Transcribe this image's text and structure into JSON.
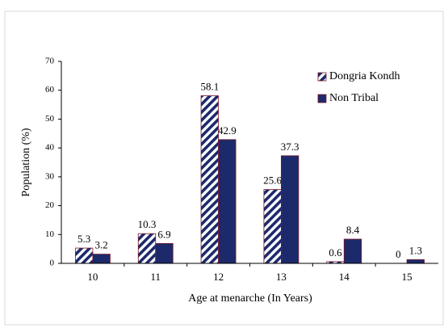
{
  "chart_data": {
    "type": "bar",
    "categories": [
      "10",
      "11",
      "12",
      "13",
      "14",
      "15"
    ],
    "series": [
      {
        "name": "Dongria Kondh",
        "color": "#1c2a6b",
        "pattern": "hatch",
        "values": [
          5.3,
          10.3,
          58.1,
          25.6,
          0.6,
          0
        ]
      },
      {
        "name": "Non Tribal",
        "color": "#1c2a6b",
        "values": [
          3.2,
          6.9,
          42.9,
          37.3,
          8.4,
          1.3
        ]
      }
    ],
    "xlabel": "Age at menarche (In Years)",
    "ylabel": "Population (%)",
    "ylim": [
      0,
      70
    ],
    "yticks": [
      0,
      10,
      20,
      30,
      40,
      50,
      60,
      70
    ],
    "legend": "upper right"
  }
}
